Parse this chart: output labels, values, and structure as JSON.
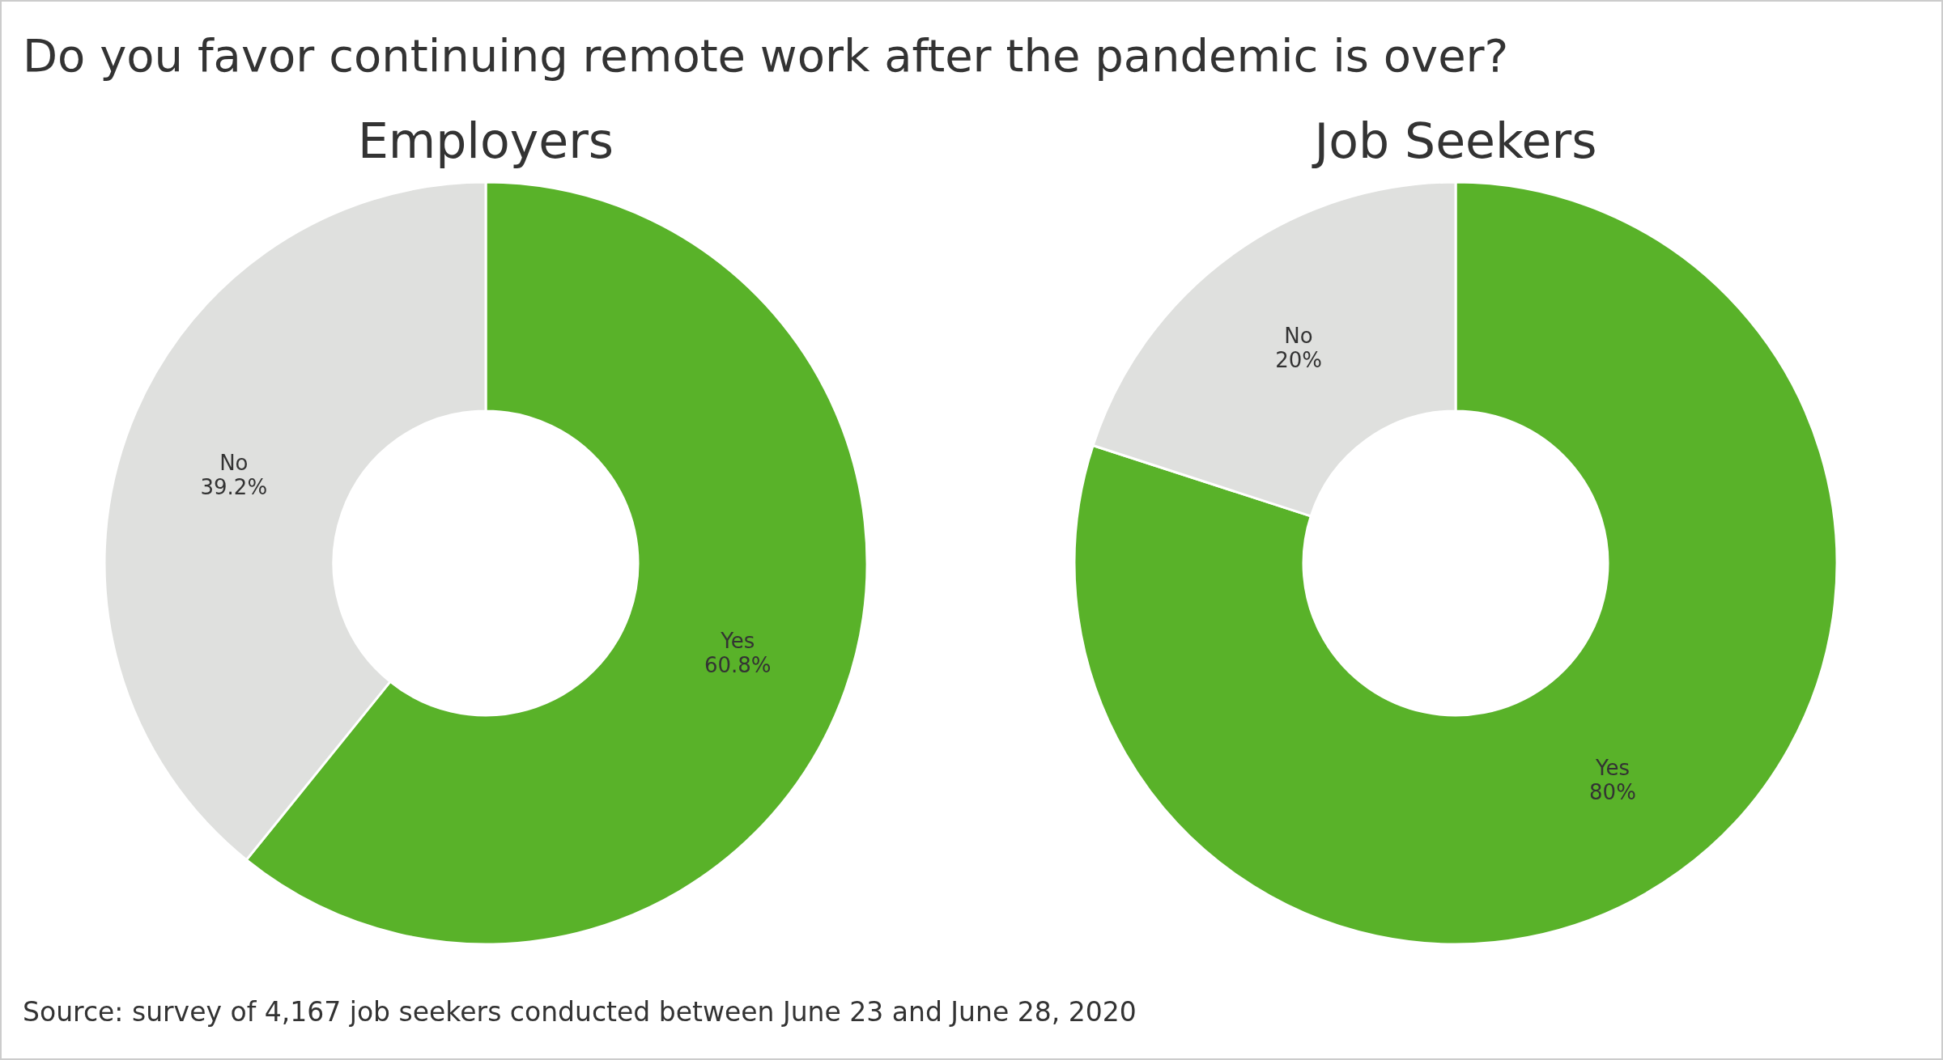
{
  "chart_data": [
    {
      "type": "other",
      "title": "Do you favor continuing remote work after the pandemic is over?",
      "annotations": [
        "Source: survey of 4,167 job seekers conducted between June 23 and June 28, 2020"
      ]
    },
    {
      "type": "donut",
      "title": "Employers",
      "categories": [
        "Yes",
        "No"
      ],
      "values": [
        60.8,
        39.2
      ],
      "value_labels": [
        "60.8%",
        "39.2%"
      ],
      "colors": [
        "#59b229",
        "#dfe0de"
      ]
    },
    {
      "type": "donut",
      "title": "Job Seekers",
      "categories": [
        "Yes",
        "No"
      ],
      "values": [
        80,
        20
      ],
      "value_labels": [
        "80%",
        "20%"
      ],
      "colors": [
        "#59b229",
        "#dfe0de"
      ]
    }
  ]
}
